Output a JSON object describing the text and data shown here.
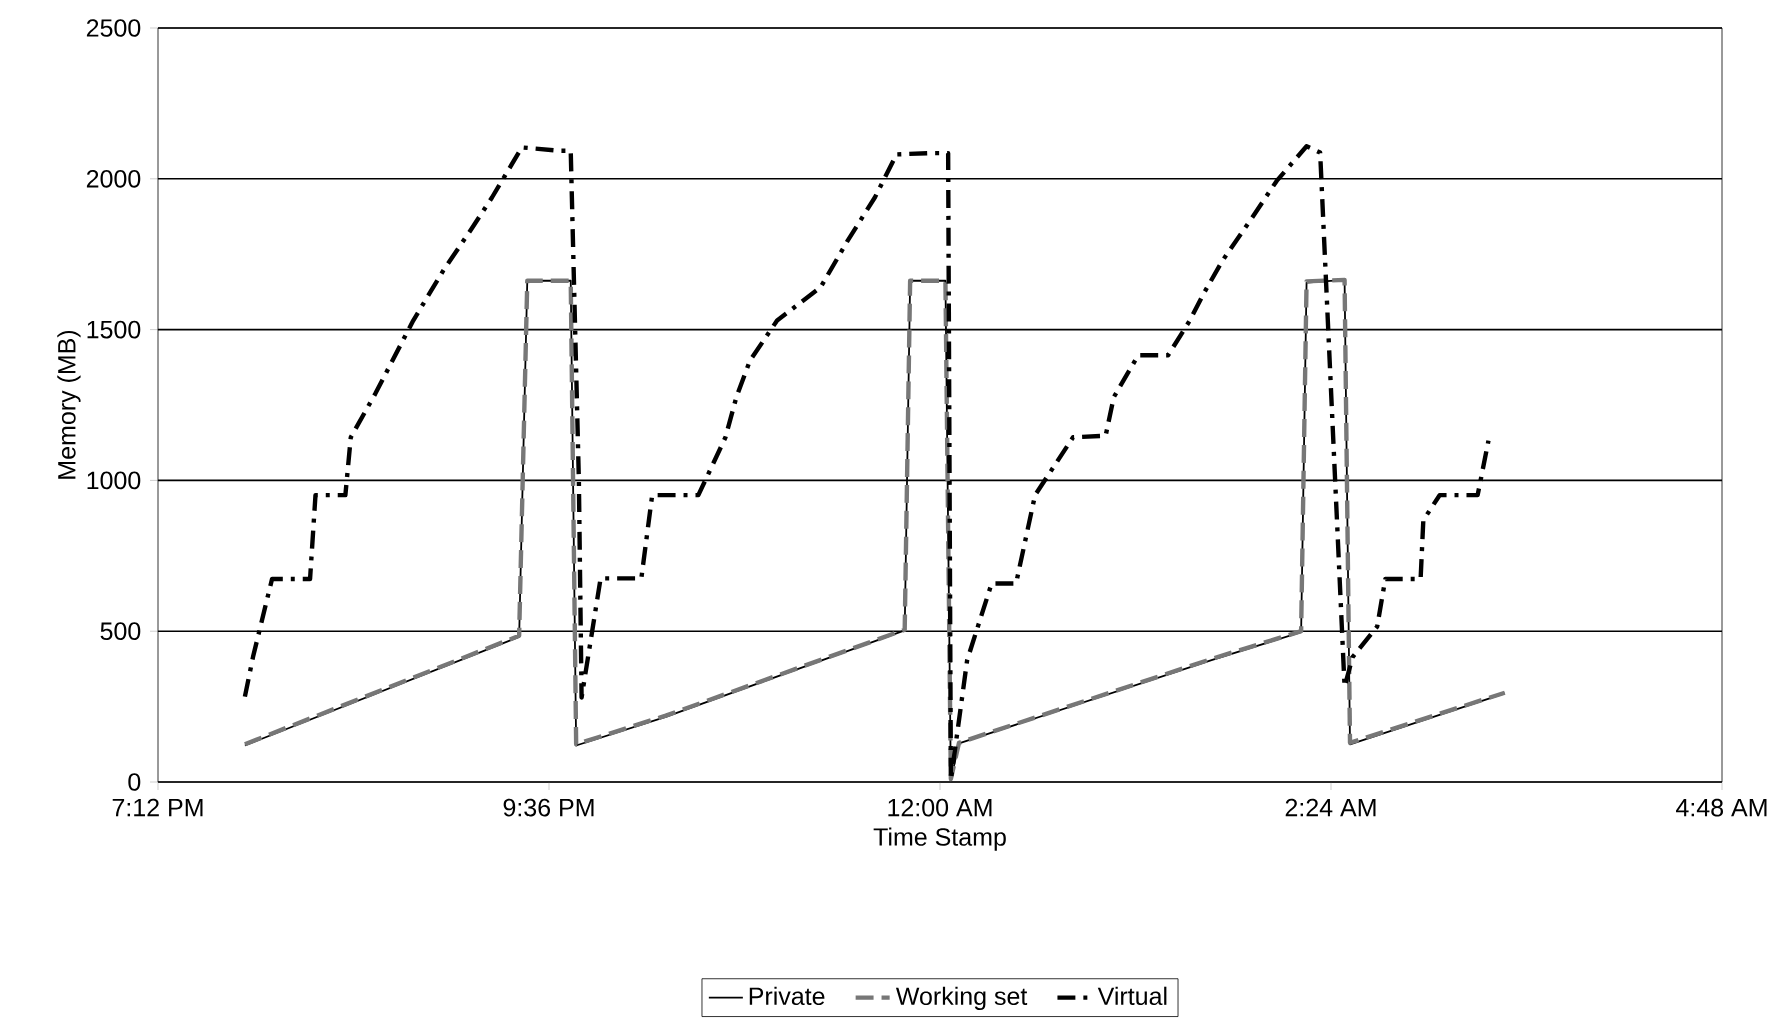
{
  "chart_data": {
    "type": "line",
    "xlabel": "Time Stamp",
    "ylabel": "Memory (MB)",
    "xlim": [
      "2000-01-01T19:12",
      "2000-01-02T04:48"
    ],
    "xticks": [
      {
        "value": "2000-01-01T19:12",
        "label": "7:12 PM"
      },
      {
        "value": "2000-01-01T21:36",
        "label": "9:36 PM"
      },
      {
        "value": "2000-01-02T00:00",
        "label": "12:00 AM"
      },
      {
        "value": "2000-01-02T02:24",
        "label": "2:24 AM"
      },
      {
        "value": "2000-01-02T04:48",
        "label": "4:48 AM"
      }
    ],
    "ylim": [
      0,
      2500
    ],
    "yticks": [
      0,
      500,
      1000,
      1500,
      2000,
      2500
    ],
    "grid": "y",
    "legend": "bottom",
    "marker": "none",
    "series": [
      {
        "name": "Private",
        "color": "#000000",
        "line_style": "solid",
        "x": [
          "2000-01-01T19:44",
          "2000-01-01T21:25",
          "2000-01-01T21:28",
          "2000-01-01T21:44",
          "2000-01-01T21:46",
          "2000-01-01T22:19",
          "2000-01-01T23:47",
          "2000-01-01T23:49",
          "2000-01-02T00:02",
          "2000-01-02T00:04",
          "2000-01-02T00:07",
          "2000-01-02T01:40",
          "2000-01-02T02:13",
          "2000-01-02T02:15",
          "2000-01-02T02:29",
          "2000-01-02T02:31",
          "2000-01-02T03:28"
        ],
        "values": [
          121,
          481,
          1662,
          1662,
          121,
          216,
          503,
          1662,
          1662,
          7,
          128,
          404,
          497,
          1656,
          1665,
          125,
          294
        ]
      },
      {
        "name": "Working set",
        "color": "#777777",
        "line_style": "dashed",
        "x": [
          "2000-01-01T19:44",
          "2000-01-01T21:25",
          "2000-01-01T21:28",
          "2000-01-01T21:44",
          "2000-01-01T21:46",
          "2000-01-01T22:19",
          "2000-01-01T23:47",
          "2000-01-01T23:49",
          "2000-01-02T00:02",
          "2000-01-02T00:04",
          "2000-01-02T00:07",
          "2000-01-02T01:40",
          "2000-01-02T02:13",
          "2000-01-02T02:15",
          "2000-01-02T02:29",
          "2000-01-02T02:31",
          "2000-01-02T03:28"
        ],
        "values": [
          125,
          485,
          1662,
          1662,
          125,
          220,
          505,
          1662,
          1662,
          10,
          130,
          408,
          500,
          1660,
          1665,
          130,
          296
        ]
      },
      {
        "name": "Virtual",
        "color": "#000000",
        "line_style": "dashdot",
        "x": [
          "2000-01-01T19:44",
          "2000-01-01T19:47",
          "2000-01-01T19:54",
          "2000-01-01T20:08",
          "2000-01-01T20:10",
          "2000-01-01T20:21",
          "2000-01-01T20:23",
          "2000-01-01T20:32",
          "2000-01-01T20:46",
          "2000-01-01T20:57",
          "2000-01-01T21:07",
          "2000-01-01T21:15",
          "2000-01-01T21:26",
          "2000-01-01T21:40",
          "2000-01-01T21:44",
          "2000-01-01T21:47",
          "2000-01-01T21:48",
          "2000-01-01T21:55",
          "2000-01-01T22:10",
          "2000-01-01T22:14",
          "2000-01-01T22:31",
          "2000-01-01T22:41",
          "2000-01-01T22:45",
          "2000-01-01T22:50",
          "2000-01-01T23:00",
          "2000-01-01T23:16",
          "2000-01-01T23:26",
          "2000-01-01T23:36",
          "2000-01-01T23:44",
          "2000-01-01T23:56",
          "2000-01-02T00:03",
          "2000-01-02T00:04",
          "2000-01-02T00:10",
          "2000-01-02T00:19",
          "2000-01-02T00:28",
          "2000-01-02T00:35",
          "2000-01-02T00:49",
          "2000-01-02T01:01",
          "2000-01-02T01:04",
          "2000-01-02T01:13",
          "2000-01-02T01:24",
          "2000-01-02T01:32",
          "2000-01-02T01:37",
          "2000-01-02T01:44",
          "2000-01-02T01:55",
          "2000-01-02T02:04",
          "2000-01-02T02:15",
          "2000-01-02T02:20",
          "2000-01-02T02:29",
          "2000-01-02T02:32",
          "2000-01-02T02:41",
          "2000-01-02T02:44",
          "2000-01-02T02:57",
          "2000-01-02T02:58",
          "2000-01-02T03:04",
          "2000-01-02T03:18",
          "2000-01-02T03:22"
        ],
        "values": [
          283,
          415,
          673,
          673,
          951,
          951,
          1143,
          1287,
          1530,
          1695,
          1828,
          1938,
          2104,
          2093,
          2093,
          1000,
          280,
          675,
          675,
          951,
          951,
          1143,
          1276,
          1397,
          1530,
          1640,
          1795,
          1938,
          2081,
          2085,
          2085,
          7,
          404,
          658,
          658,
          951,
          1143,
          1148,
          1276,
          1415,
          1415,
          1530,
          1618,
          1728,
          1872,
          1993,
          2108,
          2087,
          316,
          415,
          515,
          673,
          673,
          868,
          951,
          951,
          1132
        ]
      }
    ]
  }
}
